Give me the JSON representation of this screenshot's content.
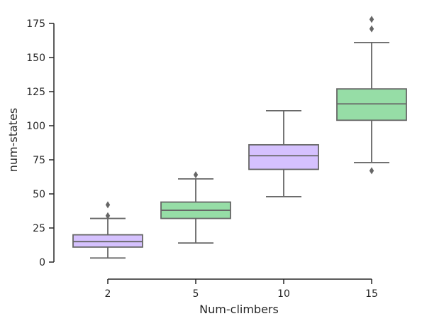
{
  "chart_data": {
    "type": "box",
    "xlabel": "Num-climbers",
    "ylabel": "num-states",
    "categories": [
      "2",
      "5",
      "10",
      "15"
    ],
    "ylim": [
      -10,
      180
    ],
    "yticks": [
      0,
      25,
      50,
      75,
      100,
      125,
      150,
      175
    ],
    "grid": false,
    "legend": "none",
    "colors": {
      "purple": "#d5c1fe",
      "green": "#96dda6",
      "stroke": "#666666",
      "axis": "#262626"
    },
    "boxes": [
      {
        "category": "2",
        "color": "#d5c1fe",
        "whisker_low": 3,
        "q1": 11,
        "median": 15,
        "q3": 20,
        "whisker_high": 32,
        "outliers": [
          34,
          42
        ]
      },
      {
        "category": "5",
        "color": "#96dda6",
        "whisker_low": 14,
        "q1": 32,
        "median": 38,
        "q3": 44,
        "whisker_high": 61,
        "outliers": [
          64
        ]
      },
      {
        "category": "10",
        "color": "#d5c1fe",
        "whisker_low": 48,
        "q1": 68,
        "median": 78,
        "q3": 86,
        "whisker_high": 111,
        "outliers": []
      },
      {
        "category": "15",
        "color": "#96dda6",
        "whisker_low": 73,
        "q1": 104,
        "median": 116,
        "q3": 127,
        "whisker_high": 161,
        "outliers": [
          67,
          171,
          178
        ]
      }
    ]
  }
}
